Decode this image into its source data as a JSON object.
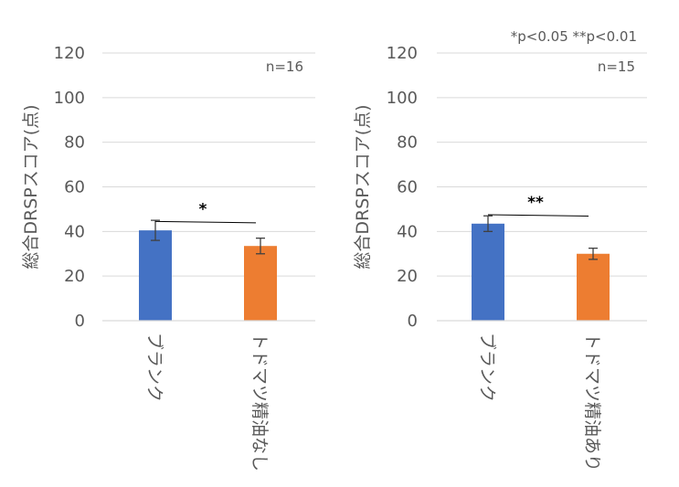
{
  "note": "*p<0.05 **p<0.01",
  "colors": {
    "blank": "#4472C4",
    "treatment": "#ED7D31",
    "grid": "#D9D9D9",
    "text": "#595959",
    "error": "#404040"
  },
  "chart_data": [
    {
      "type": "bar",
      "ylabel": "総合DRSPスコア(点)",
      "ylim": [
        0,
        120
      ],
      "yticks": [
        0,
        20,
        40,
        60,
        80,
        100,
        120
      ],
      "categories": [
        "ブランク",
        "トドマツ精油なし"
      ],
      "values": [
        40.5,
        33.5
      ],
      "errors": [
        4.5,
        3.5
      ],
      "n_label": "n=16",
      "significance": "*",
      "grid": true
    },
    {
      "type": "bar",
      "ylabel": "総合DRSPスコア(点)",
      "ylim": [
        0,
        120
      ],
      "yticks": [
        0,
        20,
        40,
        60,
        80,
        100,
        120
      ],
      "categories": [
        "ブランク",
        "トドマツ精油あり"
      ],
      "values": [
        43.5,
        30.0
      ],
      "errors": [
        3.5,
        2.5
      ],
      "n_label": "n=15",
      "significance": "**",
      "grid": true
    }
  ]
}
